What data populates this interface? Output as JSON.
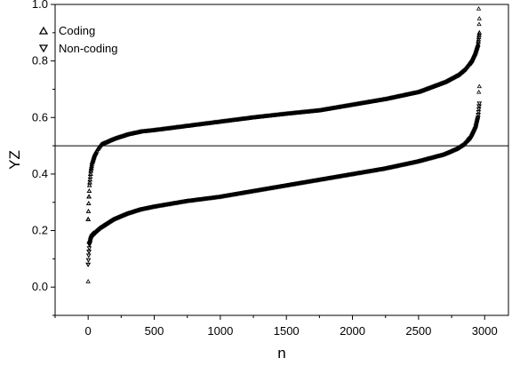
{
  "chart_data": {
    "type": "scatter",
    "title": "",
    "xlabel": "n",
    "ylabel": "YZ",
    "xlim": [
      -250,
      3180
    ],
    "ylim": [
      -0.1,
      1.0
    ],
    "xticks": [
      0,
      500,
      1000,
      1500,
      2000,
      2500,
      3000
    ],
    "xtick_labels": [
      "0",
      "500",
      "1000",
      "1500",
      "2000",
      "2500",
      "3000"
    ],
    "yticks": [
      0.0,
      0.2,
      0.4,
      0.6,
      0.8,
      1.0
    ],
    "ytick_labels": [
      "0.0",
      "0.2",
      "0.4",
      "0.6",
      "0.8",
      "1.0"
    ],
    "grid": false,
    "legend_position": "top-left",
    "reference_line": {
      "orientation": "horizontal",
      "y": 0.5
    },
    "series": [
      {
        "name": "Coding",
        "marker": "triangle-up",
        "x": [
          0,
          5,
          10,
          20,
          30,
          50,
          75,
          100,
          150,
          200,
          300,
          400,
          500,
          750,
          1000,
          1250,
          1500,
          1750,
          2000,
          2250,
          2500,
          2700,
          2800,
          2850,
          2900,
          2930,
          2950,
          2960
        ],
        "y": [
          0.24,
          0.31,
          0.36,
          0.41,
          0.44,
          0.47,
          0.49,
          0.505,
          0.515,
          0.525,
          0.54,
          0.55,
          0.555,
          0.57,
          0.585,
          0.6,
          0.613,
          0.625,
          0.645,
          0.665,
          0.69,
          0.725,
          0.75,
          0.77,
          0.8,
          0.83,
          0.86,
          0.9
        ]
      },
      {
        "name": "Non-coding",
        "marker": "triangle-down",
        "x": [
          0,
          5,
          10,
          20,
          30,
          50,
          75,
          100,
          150,
          200,
          300,
          400,
          500,
          750,
          1000,
          1250,
          1500,
          1750,
          2000,
          2250,
          2500,
          2700,
          2800,
          2850,
          2900,
          2930,
          2950,
          2960
        ],
        "y": [
          0.08,
          0.12,
          0.15,
          0.17,
          0.18,
          0.19,
          0.2,
          0.21,
          0.225,
          0.24,
          0.26,
          0.275,
          0.285,
          0.305,
          0.32,
          0.34,
          0.36,
          0.38,
          0.4,
          0.42,
          0.445,
          0.47,
          0.49,
          0.505,
          0.53,
          0.56,
          0.6,
          0.65
        ]
      }
    ],
    "outliers": [
      {
        "x": 0,
        "y": 0.02
      },
      {
        "x": 5,
        "y": 0.16
      },
      {
        "x": 2955,
        "y": 0.985
      },
      {
        "x": 2960,
        "y": 0.95
      },
      {
        "x": 2958,
        "y": 0.93
      },
      {
        "x": 2960,
        "y": 0.71
      },
      {
        "x": 2956,
        "y": 0.69
      }
    ]
  }
}
